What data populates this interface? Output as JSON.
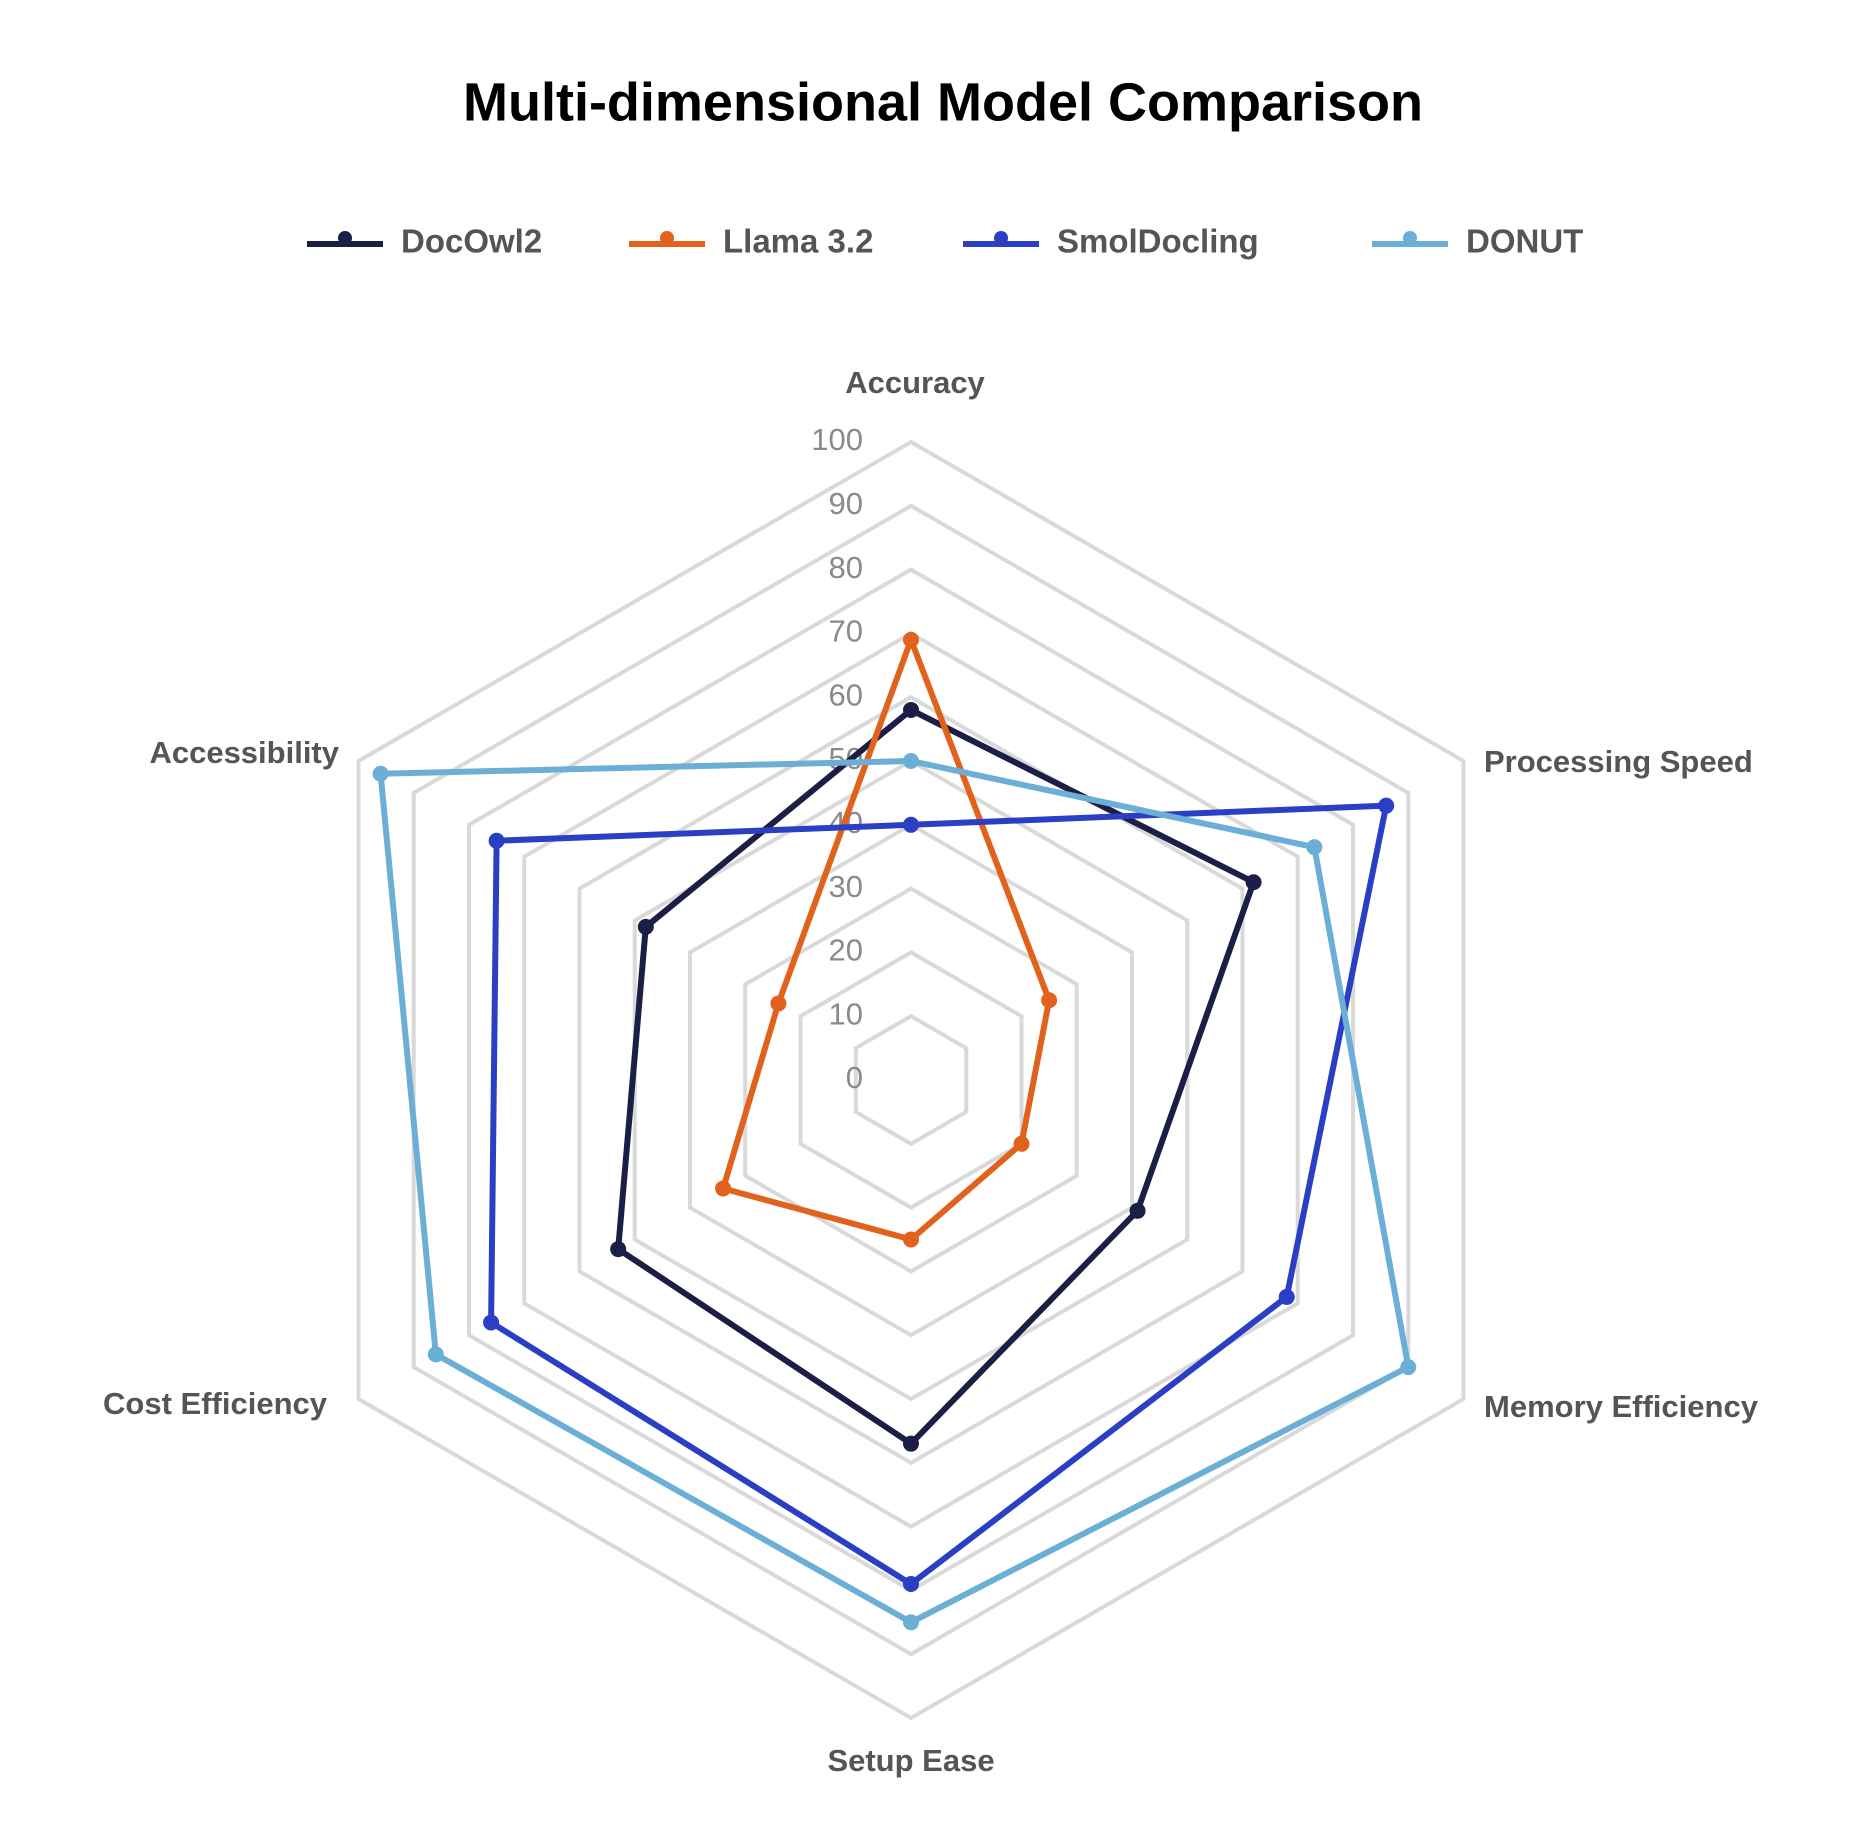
{
  "chart_data": {
    "type": "radar",
    "title": "Multi-dimensional Model Comparison",
    "categories": [
      "Accuracy",
      "Processing Speed",
      "Memory Efficiency",
      "Setup Ease",
      "Cost Efficiency",
      "Accessibility"
    ],
    "series": [
      {
        "name": "DocOwl2",
        "color": "#1b1f45",
        "values": [
          58,
          62,
          41,
          57,
          53,
          48
        ]
      },
      {
        "name": "Llama 3.2",
        "color": "#e0621c",
        "values": [
          69,
          25,
          20,
          25,
          34,
          24
        ]
      },
      {
        "name": "SmolDocling",
        "color": "#2a3fc4",
        "values": [
          40,
          86,
          68,
          79,
          76,
          75
        ]
      },
      {
        "name": "DONUT",
        "color": "#6baed6",
        "values": [
          50,
          73,
          90,
          85,
          86,
          96
        ]
      }
    ],
    "ylim": [
      0,
      100
    ],
    "yticks": [
      0,
      10,
      20,
      30,
      40,
      50,
      60,
      70,
      80,
      90,
      100
    ],
    "grid": true,
    "legend": "top"
  }
}
